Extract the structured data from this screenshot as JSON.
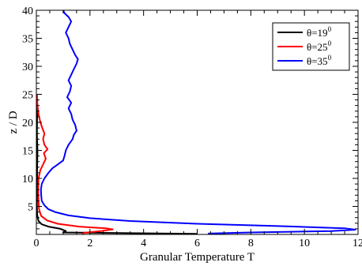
{
  "chart_data": {
    "type": "line",
    "xlabel": "Granular Temperature T",
    "ylabel": "z / D",
    "xlim": [
      0,
      12
    ],
    "ylim": [
      0,
      40
    ],
    "xticks": [
      0,
      2,
      4,
      6,
      8,
      10,
      12
    ],
    "yticks": [
      5,
      10,
      15,
      20,
      25,
      30,
      35,
      40
    ],
    "grid": false,
    "legend_position": "top-right",
    "series": [
      {
        "name": "θ=19",
        "name_sup": "0",
        "color": "#000000",
        "points": [
          [
            6.0,
            0.1
          ],
          [
            1.0,
            0.35
          ],
          [
            1.1,
            0.6
          ],
          [
            0.9,
            1.0
          ],
          [
            0.45,
            1.4
          ],
          [
            0.2,
            1.8
          ],
          [
            0.08,
            2.4
          ],
          [
            0.03,
            3.5
          ],
          [
            0.02,
            5
          ],
          [
            0.02,
            7
          ],
          [
            0.03,
            9
          ],
          [
            0.03,
            12
          ],
          [
            0.04,
            15
          ],
          [
            0.02,
            18
          ],
          [
            0.03,
            21
          ],
          [
            0.02,
            25
          ]
        ]
      },
      {
        "name": "θ=25",
        "name_sup": "0",
        "color": "#ff0000",
        "points": [
          [
            1.7,
            0.1
          ],
          [
            1.8,
            0.3
          ],
          [
            2.4,
            0.6
          ],
          [
            2.85,
            0.9
          ],
          [
            2.6,
            1.1
          ],
          [
            1.6,
            1.4
          ],
          [
            0.8,
            1.9
          ],
          [
            0.4,
            2.5
          ],
          [
            0.18,
            3.3
          ],
          [
            0.1,
            4.5
          ],
          [
            0.08,
            6
          ],
          [
            0.07,
            8
          ],
          [
            0.08,
            10
          ],
          [
            0.15,
            11.5
          ],
          [
            0.25,
            12.5
          ],
          [
            0.35,
            13.5
          ],
          [
            0.28,
            14.5
          ],
          [
            0.42,
            15.2
          ],
          [
            0.3,
            16
          ],
          [
            0.25,
            17
          ],
          [
            0.3,
            18
          ],
          [
            0.22,
            19
          ],
          [
            0.15,
            20
          ],
          [
            0.08,
            21.5
          ],
          [
            0.04,
            23
          ],
          [
            0.02,
            25
          ]
        ]
      },
      {
        "name": "θ=35",
        "name_sup": "0",
        "color": "#0000ff",
        "points": [
          [
            6.4,
            0.15
          ],
          [
            8.0,
            0.35
          ],
          [
            11.0,
            0.6
          ],
          [
            11.9,
            0.85
          ],
          [
            11.5,
            1.1
          ],
          [
            9.0,
            1.5
          ],
          [
            6.0,
            1.9
          ],
          [
            3.5,
            2.4
          ],
          [
            2.0,
            2.9
          ],
          [
            1.2,
            3.4
          ],
          [
            0.7,
            4.0
          ],
          [
            0.45,
            4.5
          ],
          [
            0.3,
            5.2
          ],
          [
            0.2,
            6.0
          ],
          [
            0.18,
            7
          ],
          [
            0.17,
            8
          ],
          [
            0.2,
            9
          ],
          [
            0.3,
            10
          ],
          [
            0.45,
            11
          ],
          [
            0.6,
            11.8
          ],
          [
            0.8,
            12.5
          ],
          [
            1.0,
            13.2
          ],
          [
            1.05,
            14
          ],
          [
            1.1,
            15
          ],
          [
            1.2,
            16
          ],
          [
            1.35,
            17
          ],
          [
            1.4,
            17.8
          ],
          [
            1.5,
            18.5
          ],
          [
            1.45,
            19.5
          ],
          [
            1.35,
            20.5
          ],
          [
            1.3,
            21.5
          ],
          [
            1.2,
            22.5
          ],
          [
            1.3,
            23.5
          ],
          [
            1.15,
            24.5
          ],
          [
            1.25,
            25.5
          ],
          [
            1.3,
            26.5
          ],
          [
            1.2,
            27.5
          ],
          [
            1.3,
            28.5
          ],
          [
            1.4,
            29.5
          ],
          [
            1.5,
            30.5
          ],
          [
            1.55,
            31.3
          ],
          [
            1.45,
            32
          ],
          [
            1.35,
            33
          ],
          [
            1.25,
            34
          ],
          [
            1.2,
            35
          ],
          [
            1.1,
            36
          ],
          [
            1.2,
            37
          ],
          [
            1.3,
            38
          ],
          [
            1.2,
            38.8
          ],
          [
            1.05,
            39.5
          ],
          [
            1.0,
            40
          ]
        ]
      }
    ]
  }
}
